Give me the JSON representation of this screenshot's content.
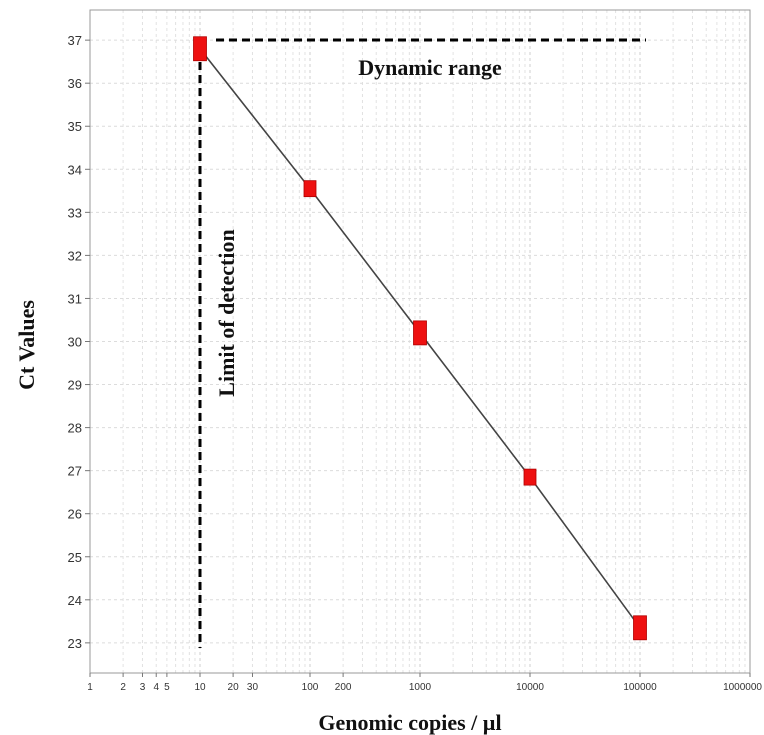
{
  "chart_data": {
    "type": "scatter",
    "title": "",
    "xlabel": "Genomic copies / µl",
    "ylabel": "Ct Values",
    "x_scale": "log",
    "xlim": [
      1,
      1000000
    ],
    "ylim": [
      22.3,
      37.7
    ],
    "grid": true,
    "x_tick_labels": [
      "1",
      "2",
      "3",
      "4",
      "5",
      "10",
      "20",
      "30",
      "100",
      "200",
      "1000",
      "10000",
      "100000",
      "1000000"
    ],
    "y_ticks": [
      23,
      24,
      25,
      26,
      27,
      28,
      29,
      30,
      31,
      32,
      33,
      34,
      35,
      36,
      37
    ],
    "series": [
      {
        "x": [
          10,
          100,
          1000,
          10000,
          100000
        ],
        "y": [
          36.8,
          33.55,
          30.2,
          26.85,
          23.35
        ],
        "marker_color": "#ee1111",
        "line_color": "#444444"
      }
    ],
    "annotations": [
      {
        "text": "Dynamic range"
      },
      {
        "text": "Limit of detection"
      }
    ]
  }
}
